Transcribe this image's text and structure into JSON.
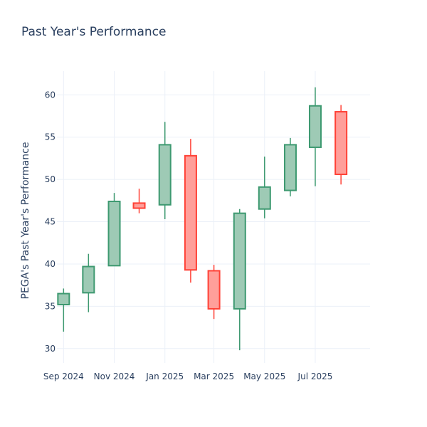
{
  "chart_data": {
    "type": "candlestick",
    "title": "Past Year's Performance",
    "xlabel": "",
    "ylabel": "PEGA's Past Year's Performance",
    "ylim": [
      28.3,
      62.8
    ],
    "y_ticks": [
      30,
      35,
      40,
      45,
      50,
      55,
      60
    ],
    "x_ticks": [
      {
        "date": "2024-09-01",
        "label": "Sep 2024"
      },
      {
        "date": "2024-11-01",
        "label": "Nov 2024"
      },
      {
        "date": "2025-01-01",
        "label": "Jan 2025"
      },
      {
        "date": "2025-03-01",
        "label": "Mar 2025"
      },
      {
        "date": "2025-05-01",
        "label": "May 2025"
      },
      {
        "date": "2025-07-01",
        "label": "Jul 2025"
      }
    ],
    "xlim": [
      "2024-08-24",
      "2025-09-05"
    ],
    "grid": true,
    "legend": false,
    "colors": {
      "increasing": "#3d9970",
      "increasing_fill": "#9ecab5",
      "decreasing": "#ff4136",
      "decreasing_fill": "#ff9f9a"
    },
    "series": [
      {
        "date": "2024-09-01",
        "open": 35.2,
        "high": 37.1,
        "low": 32.0,
        "close": 36.5
      },
      {
        "date": "2024-10-01",
        "open": 36.6,
        "high": 41.2,
        "low": 34.3,
        "close": 39.7
      },
      {
        "date": "2024-11-01",
        "open": 39.8,
        "high": 48.4,
        "low": 39.8,
        "close": 47.4
      },
      {
        "date": "2024-12-01",
        "open": 47.2,
        "high": 48.9,
        "low": 46.0,
        "close": 46.6
      },
      {
        "date": "2025-01-01",
        "open": 47.0,
        "high": 56.8,
        "low": 45.3,
        "close": 54.1
      },
      {
        "date": "2025-02-01",
        "open": 52.8,
        "high": 54.8,
        "low": 37.8,
        "close": 39.3
      },
      {
        "date": "2025-03-01",
        "open": 39.2,
        "high": 39.9,
        "low": 33.5,
        "close": 34.7
      },
      {
        "date": "2025-04-01",
        "open": 34.7,
        "high": 46.5,
        "low": 29.8,
        "close": 46.0
      },
      {
        "date": "2025-05-01",
        "open": 46.5,
        "high": 52.7,
        "low": 45.4,
        "close": 49.1
      },
      {
        "date": "2025-06-01",
        "open": 48.7,
        "high": 54.9,
        "low": 48.0,
        "close": 54.1
      },
      {
        "date": "2025-07-01",
        "open": 53.8,
        "high": 60.9,
        "low": 49.2,
        "close": 58.7
      },
      {
        "date": "2025-08-01",
        "open": 58.0,
        "high": 58.8,
        "low": 49.4,
        "close": 50.6
      }
    ]
  }
}
